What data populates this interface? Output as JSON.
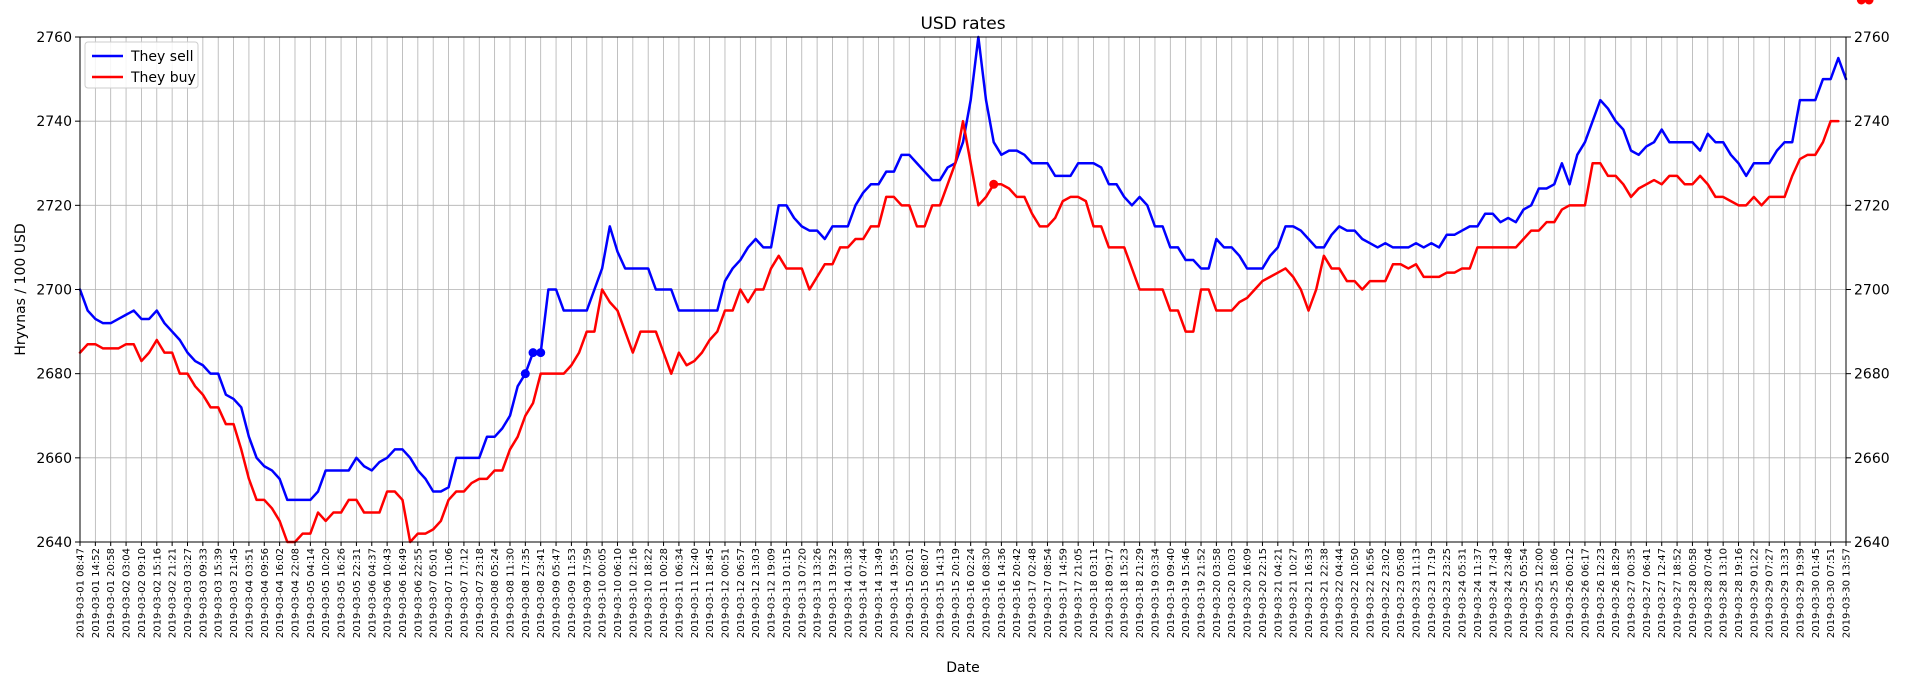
{
  "chart_data": {
    "type": "line",
    "title": "USD rates",
    "xlabel": "Date",
    "ylabel": "Hryvnas / 100 USD",
    "ylim": [
      2640,
      2760
    ],
    "yticks": [
      2640,
      2660,
      2680,
      2700,
      2720,
      2740,
      2760
    ],
    "grid": true,
    "legend": "top-left",
    "x_range": [
      "2019-03-01 08:47",
      "2019-03-30 13:57"
    ],
    "series": [
      {
        "name": "They sell",
        "color": "#0000ff",
        "marker_indices": [
          58,
          59,
          60
        ],
        "values": [
          2700,
          2695,
          2693,
          2692,
          2692,
          2693,
          2694,
          2695,
          2693,
          2693,
          2695,
          2692,
          2690,
          2688,
          2685,
          2683,
          2682,
          2680,
          2680,
          2675,
          2674,
          2672,
          2665,
          2660,
          2658,
          2657,
          2655,
          2650,
          2650,
          2650,
          2650,
          2652,
          2657,
          2657,
          2657,
          2657,
          2660,
          2658,
          2657,
          2659,
          2660,
          2662,
          2662,
          2660,
          2657,
          2655,
          2652,
          2652,
          2653,
          2660,
          2660,
          2660,
          2660,
          2665,
          2665,
          2667,
          2670,
          2677,
          2680,
          2685,
          2685,
          2700,
          2700,
          2695,
          2695,
          2695,
          2695,
          2700,
          2705,
          2715,
          2709,
          2705,
          2705,
          2705,
          2705,
          2700,
          2700,
          2700,
          2695,
          2695,
          2695,
          2695,
          2695,
          2695,
          2702,
          2705,
          2707,
          2710,
          2712,
          2710,
          2710,
          2720,
          2720,
          2717,
          2715,
          2714,
          2714,
          2712,
          2715,
          2715,
          2715,
          2720,
          2723,
          2725,
          2725,
          2728,
          2728,
          2732,
          2732,
          2730,
          2728,
          2726,
          2726,
          2729,
          2730,
          2735,
          2745,
          2760,
          2745,
          2735,
          2732,
          2733,
          2733,
          2732,
          2730,
          2730,
          2730,
          2727,
          2727,
          2727,
          2730,
          2730,
          2730,
          2729,
          2725,
          2725,
          2722,
          2720,
          2722,
          2720,
          2715,
          2715,
          2710,
          2710,
          2707,
          2707,
          2705,
          2705,
          2712,
          2710,
          2710,
          2708,
          2705,
          2705,
          2705,
          2708,
          2710,
          2715,
          2715,
          2714,
          2712,
          2710,
          2710,
          2713,
          2715,
          2714,
          2714,
          2712,
          2711,
          2710,
          2711,
          2710,
          2710,
          2710,
          2711,
          2710,
          2711,
          2710,
          2713,
          2713,
          2714,
          2715,
          2715,
          2718,
          2718,
          2716,
          2717,
          2716,
          2719,
          2720,
          2724,
          2724,
          2725,
          2730,
          2725,
          2732,
          2735,
          2740,
          2745,
          2743,
          2740,
          2738,
          2733,
          2732,
          2734,
          2735,
          2738,
          2735,
          2735,
          2735,
          2735,
          2733,
          2737,
          2735,
          2735,
          2732,
          2730,
          2727,
          2730,
          2730,
          2730,
          2733,
          2735,
          2735,
          2745,
          2745,
          2745,
          2750,
          2750,
          2755,
          2750
        ]
      },
      {
        "name": "They buy",
        "color": "#ff0000",
        "marker_indices": [
          119,
          232,
          233
        ],
        "values": [
          2685,
          2687,
          2687,
          2686,
          2686,
          2686,
          2687,
          2687,
          2683,
          2685,
          2688,
          2685,
          2685,
          2680,
          2680,
          2677,
          2675,
          2672,
          2672,
          2668,
          2668,
          2662,
          2655,
          2650,
          2650,
          2648,
          2645,
          2640,
          2640,
          2642,
          2642,
          2647,
          2645,
          2647,
          2647,
          2650,
          2650,
          2647,
          2647,
          2647,
          2652,
          2652,
          2650,
          2640,
          2642,
          2642,
          2643,
          2645,
          2650,
          2652,
          2652,
          2654,
          2655,
          2655,
          2657,
          2657,
          2662,
          2665,
          2670,
          2673,
          2680,
          2680,
          2680,
          2680,
          2682,
          2685,
          2690,
          2690,
          2700,
          2697,
          2695,
          2690,
          2685,
          2690,
          2690,
          2690,
          2685,
          2680,
          2685,
          2682,
          2683,
          2685,
          2688,
          2690,
          2695,
          2695,
          2700,
          2697,
          2700,
          2700,
          2705,
          2708,
          2705,
          2705,
          2705,
          2700,
          2703,
          2706,
          2706,
          2710,
          2710,
          2712,
          2712,
          2715,
          2715,
          2722,
          2722,
          2720,
          2720,
          2715,
          2715,
          2720,
          2720,
          2725,
          2730,
          2740,
          2730,
          2720,
          2722,
          2725,
          2725,
          2724,
          2722,
          2722,
          2718,
          2715,
          2715,
          2717,
          2721,
          2722,
          2722,
          2721,
          2715,
          2715,
          2710,
          2710,
          2710,
          2705,
          2700,
          2700,
          2700,
          2700,
          2695,
          2695,
          2690,
          2690,
          2700,
          2700,
          2695,
          2695,
          2695,
          2697,
          2698,
          2700,
          2702,
          2703,
          2704,
          2705,
          2703,
          2700,
          2695,
          2700,
          2708,
          2705,
          2705,
          2702,
          2702,
          2700,
          2702,
          2702,
          2702,
          2706,
          2706,
          2705,
          2706,
          2703,
          2703,
          2703,
          2704,
          2704,
          2705,
          2705,
          2710,
          2710,
          2710,
          2710,
          2710,
          2710,
          2712,
          2714,
          2714,
          2716,
          2716,
          2719,
          2720,
          2720,
          2720,
          2730,
          2730,
          2727,
          2727,
          2725,
          2722,
          2724,
          2725,
          2726,
          2725,
          2727,
          2727,
          2725,
          2725,
          2727,
          2725,
          2722,
          2722,
          2721,
          2720,
          2720,
          2722,
          2720,
          2722,
          2722,
          2722,
          2727,
          2731,
          2732,
          2732,
          2735,
          2740,
          2740
        ]
      }
    ]
  }
}
